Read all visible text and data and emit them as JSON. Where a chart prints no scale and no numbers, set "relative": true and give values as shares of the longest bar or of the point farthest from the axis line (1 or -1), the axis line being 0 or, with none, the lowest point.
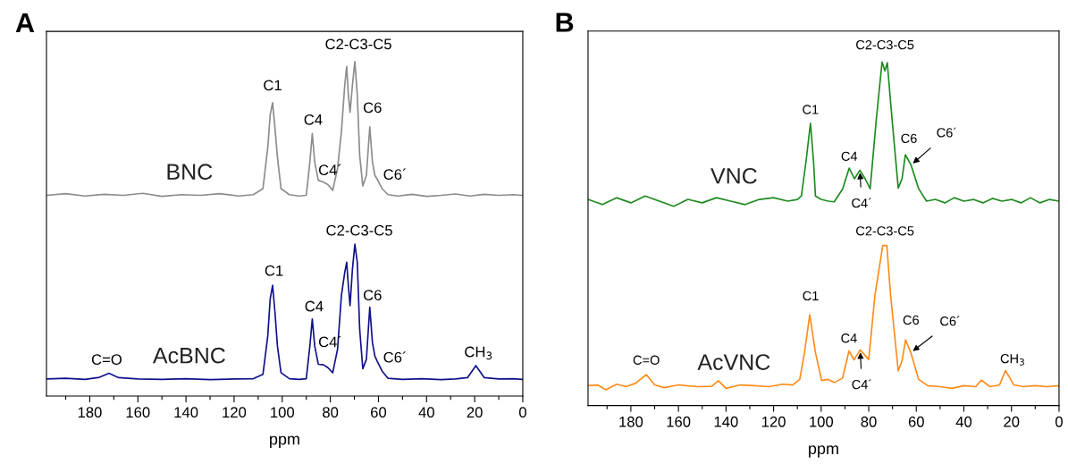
{
  "chart_data": [
    {
      "type": "line",
      "title": "A",
      "xlabel": "ppm",
      "relative": true,
      "tick_labels": "x",
      "grid": false,
      "legend": false,
      "marker": "none",
      "xlim": [
        198,
        0
      ],
      "xticks": [
        {
          "value": 190,
          "label": null
        },
        180,
        {
          "value": 170,
          "label": null
        },
        160,
        {
          "value": 150,
          "label": null
        },
        140,
        {
          "value": 130,
          "label": null
        },
        120,
        {
          "value": 110,
          "label": null
        },
        100,
        {
          "value": 90,
          "label": null
        },
        80,
        {
          "value": 70,
          "label": null
        },
        60,
        {
          "value": 50,
          "label": null
        },
        40,
        {
          "value": 30,
          "label": null
        },
        20,
        {
          "value": 10,
          "label": null
        },
        0
      ],
      "series": [
        {
          "name": "BNC",
          "color": "#8c8c8c",
          "x": [
            198,
            190,
            182,
            174,
            166,
            158,
            150,
            142,
            134,
            126,
            118,
            112,
            108,
            106,
            105,
            104,
            103,
            102,
            100.5,
            97,
            93,
            90,
            88.5,
            87.5,
            86.5,
            85,
            83,
            81,
            79,
            77,
            75.4,
            74,
            73.2,
            72.5,
            71.8,
            70.8,
            69.8,
            68.8,
            67.8,
            66.5,
            65,
            63.6,
            62.5,
            61.5,
            60.5,
            58.5,
            56,
            52,
            46,
            40,
            34,
            28,
            22,
            16,
            10,
            4,
            0
          ],
          "values": [
            0.6,
            0.605,
            0.598,
            0.603,
            0.6,
            0.606,
            0.597,
            0.602,
            0.6,
            0.605,
            0.598,
            0.602,
            0.62,
            0.743,
            0.84,
            0.877,
            0.8,
            0.715,
            0.62,
            0.602,
            0.598,
            0.6,
            0.7,
            0.785,
            0.7,
            0.645,
            0.64,
            0.632,
            0.615,
            0.68,
            0.79,
            0.93,
            0.985,
            0.9,
            0.848,
            0.93,
            1.0,
            0.9,
            0.72,
            0.628,
            0.66,
            0.805,
            0.7,
            0.66,
            0.648,
            0.62,
            0.602,
            0.598,
            0.603,
            0.597,
            0.6,
            0.604,
            0.598,
            0.603,
            0.6,
            0.602,
            0.6
          ]
        },
        {
          "name": "AcBNC",
          "color": "#10108c",
          "x": [
            198,
            190,
            182,
            176,
            172,
            168,
            160,
            150,
            140,
            130,
            120,
            112,
            108,
            106,
            105,
            104,
            103,
            102,
            100.5,
            97,
            93,
            90,
            88.5,
            87.5,
            86.5,
            85,
            83,
            81,
            79,
            77,
            75.4,
            74,
            73.2,
            72.5,
            71.8,
            70.8,
            69.8,
            68.8,
            67.8,
            66.5,
            65,
            63.6,
            62.5,
            61.5,
            60.5,
            58.5,
            56,
            50,
            42,
            34,
            28,
            23,
            19.5,
            16,
            10,
            4,
            0
          ],
          "values": [
            0.051,
            0.053,
            0.05,
            0.056,
            0.068,
            0.055,
            0.051,
            0.05,
            0.052,
            0.049,
            0.051,
            0.052,
            0.065,
            0.18,
            0.29,
            0.331,
            0.25,
            0.15,
            0.07,
            0.052,
            0.05,
            0.052,
            0.15,
            0.23,
            0.15,
            0.095,
            0.094,
            0.085,
            0.07,
            0.14,
            0.3,
            0.37,
            0.4,
            0.33,
            0.27,
            0.38,
            0.454,
            0.4,
            0.2,
            0.082,
            0.11,
            0.266,
            0.16,
            0.12,
            0.104,
            0.075,
            0.053,
            0.05,
            0.052,
            0.049,
            0.051,
            0.055,
            0.091,
            0.055,
            0.051,
            0.052,
            0.05
          ]
        }
      ],
      "annotations": [
        {
          "text": "C1",
          "x": 104,
          "y": 0.877
        },
        {
          "text": "C4",
          "x": 87.5,
          "y": 0.785
        },
        {
          "text": "C4´",
          "x": 83,
          "y": 0.64
        },
        {
          "text": "C2-C3-C5",
          "x": 69.8,
          "y": 1.0
        },
        {
          "text": "C6",
          "x": 63.6,
          "y": 0.805
        },
        {
          "text": "C6´",
          "x": 60.5,
          "y": 0.648
        },
        {
          "text": "C=O",
          "x": 172.2,
          "y": 0.068
        },
        {
          "text": "C1",
          "x": 103.8,
          "y": 0.331
        },
        {
          "text": "C4",
          "x": 87.5,
          "y": 0.23
        },
        {
          "text": "C4´",
          "x": 83,
          "y": 0.094
        },
        {
          "text": "C2-C3-C5",
          "x": 69.8,
          "y": 0.454
        },
        {
          "text": "C6",
          "x": 63.6,
          "y": 0.266
        },
        {
          "text": "C6´",
          "x": 60.5,
          "y": 0.104
        },
        {
          "text": "CH$_{3}$",
          "x": 19.5,
          "y": 0.091
        }
      ]
    },
    {
      "type": "line",
      "title": "B",
      "xlabel": "ppm",
      "relative": true,
      "tick_labels": "x",
      "grid": false,
      "legend": false,
      "marker": "none",
      "xlim": [
        198,
        0
      ],
      "xticks": [
        {
          "value": 190,
          "label": null
        },
        180,
        {
          "value": 170,
          "label": null
        },
        160,
        {
          "value": 150,
          "label": null
        },
        140,
        {
          "value": 130,
          "label": null
        },
        120,
        {
          "value": 110,
          "label": null
        },
        100,
        {
          "value": 90,
          "label": null
        },
        80,
        {
          "value": 70,
          "label": null
        },
        60,
        {
          "value": 50,
          "label": null
        },
        40,
        {
          "value": 30,
          "label": null
        },
        20,
        {
          "value": 10,
          "label": null
        },
        0
      ],
      "series": [
        {
          "name": "VNC",
          "color": "#1e8a1e",
          "x": [
            198,
            192,
            186,
            180,
            174,
            168,
            162,
            156,
            150,
            144,
            138,
            132,
            126,
            120,
            114,
            110,
            108.3,
            106.3,
            104.5,
            103.2,
            102.4,
            100,
            97,
            94.5,
            91,
            88.2,
            86,
            83.7,
            81.5,
            79.4,
            76.8,
            74.4,
            73.2,
            72.2,
            70.2,
            67.6,
            66,
            64.6,
            62.2,
            59,
            55.7,
            52,
            48,
            44,
            40,
            36,
            32,
            28,
            24,
            20,
            16,
            12,
            8,
            4,
            0
          ],
          "values": [
            0.6,
            0.585,
            0.605,
            0.59,
            0.61,
            0.595,
            0.58,
            0.6,
            0.59,
            0.605,
            0.595,
            0.585,
            0.6,
            0.605,
            0.595,
            0.6,
            0.61,
            0.714,
            0.822,
            0.71,
            0.61,
            0.6,
            0.595,
            0.593,
            0.63,
            0.691,
            0.66,
            0.685,
            0.66,
            0.631,
            0.834,
            1.0,
            0.974,
            0.998,
            0.834,
            0.633,
            0.66,
            0.73,
            0.7,
            0.631,
            0.595,
            0.6,
            0.59,
            0.605,
            0.595,
            0.6,
            0.59,
            0.603,
            0.595,
            0.6,
            0.59,
            0.605,
            0.59,
            0.6,
            0.595
          ]
        },
        {
          "name": "AcVNC",
          "color": "#ff8c1a",
          "x": [
            198,
            194,
            190.5,
            186,
            182,
            178,
            173.5,
            170,
            166,
            160,
            152,
            146,
            143.2,
            140,
            134,
            128,
            122,
            116,
            112,
            109,
            107,
            104.8,
            102.4,
            99.8,
            97.1,
            94.5,
            91,
            88.3,
            86.2,
            83.6,
            80,
            77.4,
            74.1,
            72.4,
            70.8,
            67.6,
            66,
            64.5,
            62.3,
            59,
            55.2,
            50,
            45,
            40,
            35,
            32.7,
            29,
            25,
            22.5,
            19,
            15,
            10,
            5,
            0
          ],
          "values": [
            0.058,
            0.06,
            0.046,
            0.062,
            0.055,
            0.065,
            0.09,
            0.06,
            0.052,
            0.06,
            0.055,
            0.056,
            0.072,
            0.05,
            0.06,
            0.058,
            0.055,
            0.062,
            0.06,
            0.076,
            0.154,
            0.264,
            0.154,
            0.073,
            0.076,
            0.067,
            0.08,
            0.159,
            0.133,
            0.162,
            0.134,
            0.32,
            0.466,
            0.466,
            0.32,
            0.101,
            0.13,
            0.191,
            0.154,
            0.076,
            0.058,
            0.055,
            0.05,
            0.058,
            0.055,
            0.074,
            0.055,
            0.06,
            0.102,
            0.06,
            0.055,
            0.058,
            0.055,
            0.058
          ]
        }
      ],
      "annotations": [
        {
          "text": "C1",
          "x": 104.5,
          "y": 0.822
        },
        {
          "text": "C4",
          "x": 88.2,
          "y": 0.691
        },
        {
          "text": "C4´",
          "x": 83.7,
          "y": 0.685
        },
        {
          "text": "C2-C3-C5",
          "x": 73.2,
          "y": 1.0
        },
        {
          "text": "C6",
          "x": 64.6,
          "y": 0.73
        },
        {
          "text": "C6´",
          "x": 62.2,
          "y": 0.7
        },
        {
          "text": "C=O",
          "x": 173.5,
          "y": 0.09
        },
        {
          "text": "C1",
          "x": 104.8,
          "y": 0.264
        },
        {
          "text": "C4",
          "x": 88.3,
          "y": 0.159
        },
        {
          "text": "C4´",
          "x": 83.6,
          "y": 0.162
        },
        {
          "text": "C2-C3-C5",
          "x": 73.2,
          "y": 0.466
        },
        {
          "text": "C6",
          "x": 64.5,
          "y": 0.191
        },
        {
          "text": "C6´",
          "x": 62.3,
          "y": 0.154
        },
        {
          "text": "CH$_{3}$",
          "x": 22.5,
          "y": 0.102
        }
      ]
    }
  ]
}
